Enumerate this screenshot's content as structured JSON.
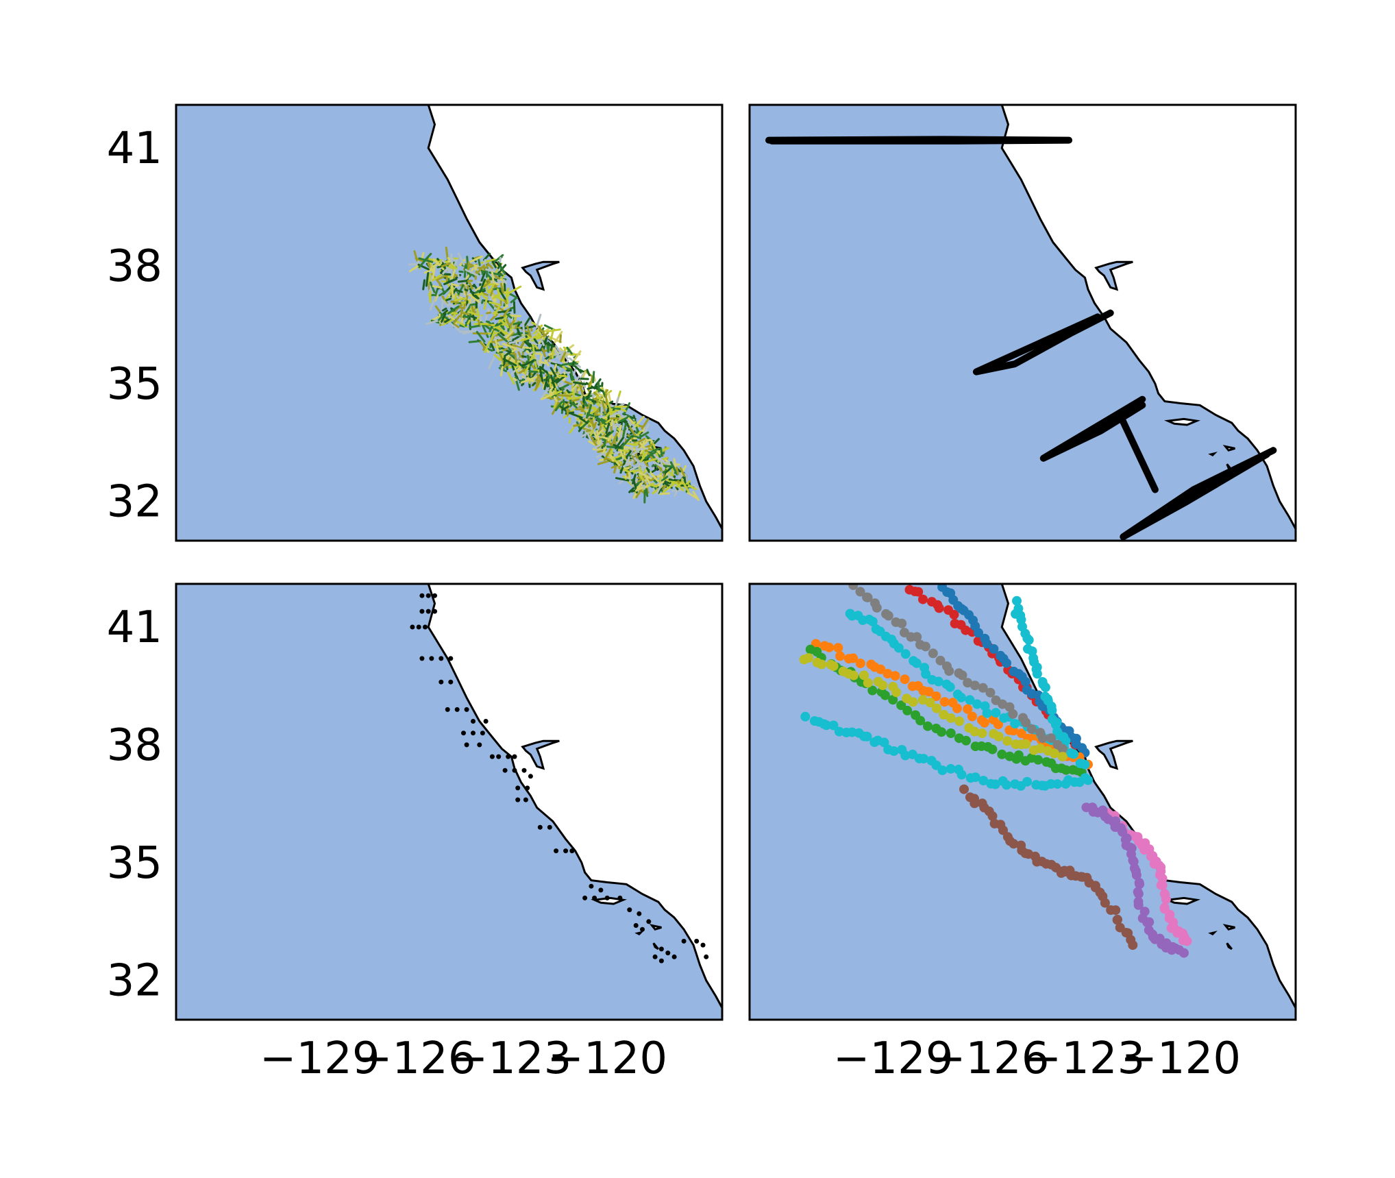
{
  "figure": {
    "background": "#ffffff"
  },
  "map": {
    "extent": {
      "lon": [
        -133.5,
        -116.4
      ],
      "lat": [
        31.0,
        42.1
      ]
    },
    "ocean_color": "#97b6e1",
    "land_color": "#ffffff",
    "coast_color": "#000000",
    "xticks": [
      -129,
      -126,
      -123,
      -120
    ],
    "yticks": [
      41,
      38,
      35,
      32
    ],
    "xtick_labels": [
      "−129",
      "−126",
      "−123",
      "−120"
    ],
    "ytick_labels": [
      "41",
      "38",
      "35",
      "32"
    ]
  },
  "coast": [
    [
      -125.6,
      42.1
    ],
    [
      -125.4,
      41.6
    ],
    [
      -125.6,
      41.0
    ],
    [
      -125.3,
      40.6
    ],
    [
      -125.0,
      40.2
    ],
    [
      -124.7,
      39.7
    ],
    [
      -124.4,
      39.2
    ],
    [
      -124.0,
      38.6
    ],
    [
      -123.6,
      38.2
    ],
    [
      -123.3,
      37.9
    ],
    [
      -123.0,
      37.7
    ],
    [
      -122.9,
      37.4
    ],
    [
      -122.7,
      37.05
    ],
    [
      -122.4,
      36.7
    ],
    [
      -122.2,
      36.4
    ],
    [
      -121.7,
      36.05
    ],
    [
      -121.3,
      35.6
    ],
    [
      -121.0,
      35.3
    ],
    [
      -120.8,
      35.0
    ],
    [
      -120.7,
      34.75
    ],
    [
      -120.5,
      34.55
    ],
    [
      -120.0,
      34.5
    ],
    [
      -119.4,
      34.45
    ],
    [
      -118.9,
      34.2
    ],
    [
      -118.4,
      34.0
    ],
    [
      -118.2,
      33.8
    ],
    [
      -117.9,
      33.6
    ],
    [
      -117.6,
      33.3
    ],
    [
      -117.3,
      32.9
    ],
    [
      -117.1,
      32.4
    ],
    [
      -116.9,
      32.0
    ],
    [
      -116.6,
      31.6
    ],
    [
      -116.4,
      31.3
    ]
  ],
  "bay": [
    [
      -122.65,
      37.95
    ],
    [
      -122.25,
      38.05
    ],
    [
      -122.0,
      38.1
    ],
    [
      -121.5,
      38.1
    ],
    [
      -121.7,
      38.05
    ],
    [
      -122.2,
      37.9
    ],
    [
      -122.1,
      37.7
    ],
    [
      -122.0,
      37.4
    ],
    [
      -122.2,
      37.45
    ],
    [
      -122.4,
      37.75
    ],
    [
      -122.55,
      37.85
    ]
  ],
  "islands": [
    [
      [
        -120.4,
        34.05
      ],
      [
        -119.9,
        34.1
      ],
      [
        -119.5,
        34.05
      ],
      [
        -119.8,
        33.95
      ],
      [
        -120.2,
        33.98
      ]
    ],
    [
      [
        -118.6,
        33.4
      ],
      [
        -118.3,
        33.35
      ],
      [
        -118.5,
        33.3
      ]
    ],
    [
      [
        -119.05,
        33.2
      ],
      [
        -118.95,
        33.22
      ],
      [
        -119.0,
        33.18
      ]
    ],
    [
      [
        -118.55,
        32.95
      ],
      [
        -118.4,
        32.8
      ],
      [
        -118.5,
        32.85
      ]
    ]
  ],
  "panels": [
    {
      "id": "velocity-quiver",
      "quiver_colors": [
        "#1b5e20",
        "#2e7d32",
        "#9e9d24",
        "#c0ca33",
        "#d4d16a",
        "#b0bec5"
      ]
    },
    {
      "id": "glider-tracks",
      "track_color": "#000000",
      "tracks": [
        [
          [
            -132.9,
            41.2
          ],
          [
            -127.5,
            41.22
          ],
          [
            -123.5,
            41.2
          ],
          [
            -127.0,
            41.18
          ],
          [
            -132.8,
            41.18
          ]
        ],
        [
          [
            -122.6,
            36.7
          ],
          [
            -124.5,
            36.0
          ],
          [
            -126.4,
            35.3
          ],
          [
            -125.2,
            35.5
          ],
          [
            -123.4,
            36.3
          ],
          [
            -122.2,
            36.8
          ]
        ],
        [
          [
            -121.2,
            34.6
          ],
          [
            -124.3,
            33.1
          ],
          [
            -122.5,
            33.8
          ],
          [
            -121.2,
            34.45
          ]
        ],
        [
          [
            -121.9,
            34.2
          ],
          [
            -120.8,
            32.3
          ]
        ],
        [
          [
            -117.1,
            33.3
          ],
          [
            -119.6,
            32.3
          ],
          [
            -121.8,
            31.1
          ],
          [
            -119.8,
            32.0
          ],
          [
            -117.3,
            33.2
          ]
        ]
      ]
    },
    {
      "id": "station-grid",
      "point_color": "#000000",
      "stations": [
        [
          -125.8,
          41.8
        ],
        [
          -125.6,
          41.8
        ],
        [
          -125.4,
          41.8
        ],
        [
          -125.8,
          41.4
        ],
        [
          -125.6,
          41.4
        ],
        [
          -125.4,
          41.4
        ],
        [
          -126.1,
          41.0
        ],
        [
          -125.9,
          41.0
        ],
        [
          -125.7,
          41.0
        ],
        [
          -125.8,
          40.2
        ],
        [
          -125.5,
          40.2
        ],
        [
          -125.2,
          40.2
        ],
        [
          -124.9,
          40.2
        ],
        [
          -125.2,
          39.6
        ],
        [
          -124.9,
          39.6
        ],
        [
          -125.0,
          38.9
        ],
        [
          -124.7,
          38.9
        ],
        [
          -124.4,
          38.9
        ],
        [
          -124.2,
          38.6
        ],
        [
          -123.8,
          38.6
        ],
        [
          -124.5,
          38.3
        ],
        [
          -124.2,
          38.3
        ],
        [
          -123.9,
          38.3
        ],
        [
          -124.4,
          38.0
        ],
        [
          -124.0,
          38.0
        ],
        [
          -123.6,
          37.7
        ],
        [
          -123.4,
          37.7
        ],
        [
          -123.1,
          37.7
        ],
        [
          -122.9,
          37.7
        ],
        [
          -123.2,
          37.35
        ],
        [
          -122.9,
          37.35
        ],
        [
          -122.6,
          37.35
        ],
        [
          -122.4,
          37.2
        ],
        [
          -122.5,
          36.9
        ],
        [
          -122.8,
          36.9
        ],
        [
          -122.55,
          36.6
        ],
        [
          -122.8,
          36.6
        ],
        [
          -122.1,
          35.9
        ],
        [
          -121.8,
          35.9
        ],
        [
          -121.6,
          35.3
        ],
        [
          -121.3,
          35.3
        ],
        [
          -121.1,
          35.3
        ],
        [
          -120.5,
          34.4
        ],
        [
          -120.2,
          34.3
        ],
        [
          -120.7,
          34.1
        ],
        [
          -120.4,
          34.1
        ],
        [
          -120.0,
          34.1
        ],
        [
          -119.6,
          34.1
        ],
        [
          -119.3,
          33.8
        ],
        [
          -119.0,
          33.7
        ],
        [
          -118.7,
          33.5
        ],
        [
          -119.1,
          33.4
        ],
        [
          -118.9,
          33.3
        ],
        [
          -118.3,
          32.8
        ],
        [
          -118.1,
          32.7
        ],
        [
          -117.6,
          33.0
        ],
        [
          -117.2,
          33.0
        ],
        [
          -117.0,
          32.9
        ],
        [
          -116.9,
          32.6
        ],
        [
          -117.9,
          32.6
        ],
        [
          -118.3,
          32.5
        ],
        [
          -118.5,
          32.6
        ]
      ]
    },
    {
      "id": "drifter-tracks",
      "drifters": [
        {
          "color": "#d62728",
          "points": [
            [
              -128.5,
              42.0
            ],
            [
              -127.5,
              41.5
            ],
            [
              -126.5,
              40.8
            ],
            [
              -125.6,
              40.1
            ],
            [
              -124.8,
              39.4
            ],
            [
              -124.0,
              38.7
            ],
            [
              -123.3,
              38.0
            ]
          ]
        },
        {
          "color": "#1f77b4",
          "points": [
            [
              -127.4,
              42.0
            ],
            [
              -126.8,
              41.4
            ],
            [
              -126.0,
              40.6
            ],
            [
              -125.1,
              39.8
            ],
            [
              -124.4,
              39.1
            ],
            [
              -123.6,
              38.4
            ],
            [
              -123.0,
              37.8
            ]
          ]
        },
        {
          "color": "#ff7f0e",
          "points": [
            [
              -131.4,
              40.6
            ],
            [
              -130.2,
              40.2
            ],
            [
              -128.9,
              39.7
            ],
            [
              -127.6,
              39.2
            ],
            [
              -126.3,
              38.7
            ],
            [
              -125.0,
              38.3
            ],
            [
              -123.8,
              37.9
            ],
            [
              -122.9,
              37.5
            ]
          ]
        },
        {
          "color": "#2ca02c",
          "points": [
            [
              -131.6,
              40.4
            ],
            [
              -130.4,
              39.8
            ],
            [
              -129.2,
              39.2
            ],
            [
              -127.9,
              38.5
            ],
            [
              -126.5,
              38.0
            ],
            [
              -125.2,
              37.7
            ],
            [
              -124.0,
              37.5
            ],
            [
              -123.1,
              37.3
            ]
          ]
        },
        {
          "color": "#17becf",
          "points": [
            [
              -131.7,
              38.7
            ],
            [
              -130.7,
              38.4
            ],
            [
              -129.6,
              38.1
            ],
            [
              -128.6,
              37.8
            ],
            [
              -127.4,
              37.4
            ],
            [
              -126.2,
              37.1
            ],
            [
              -125.0,
              37.0
            ],
            [
              -123.8,
              37.0
            ],
            [
              -122.9,
              37.1
            ]
          ]
        },
        {
          "color": "#17becf",
          "points": [
            [
              -130.4,
              41.4
            ],
            [
              -129.5,
              41.0
            ],
            [
              -128.6,
              40.3
            ],
            [
              -127.6,
              39.6
            ],
            [
              -126.4,
              39.0
            ],
            [
              -125.2,
              38.6
            ],
            [
              -124.0,
              38.1
            ],
            [
              -123.0,
              37.5
            ]
          ]
        },
        {
          "color": "#17becf",
          "points": [
            [
              -125.2,
              41.6
            ],
            [
              -124.9,
              40.9
            ],
            [
              -124.6,
              40.1
            ],
            [
              -124.3,
              39.4
            ],
            [
              -124.0,
              38.7
            ],
            [
              -123.6,
              38.1
            ]
          ]
        },
        {
          "color": "#7f7f7f",
          "points": [
            [
              -130.2,
              42.0
            ],
            [
              -129.3,
              41.4
            ],
            [
              -128.3,
              40.7
            ],
            [
              -127.2,
              39.9
            ],
            [
              -126.0,
              39.3
            ],
            [
              -124.8,
              38.5
            ],
            [
              -123.7,
              37.9
            ]
          ]
        },
        {
          "color": "#bcbd22",
          "points": [
            [
              -131.8,
              40.2
            ],
            [
              -130.6,
              39.9
            ],
            [
              -129.3,
              39.5
            ],
            [
              -127.9,
              39.0
            ],
            [
              -126.4,
              38.4
            ],
            [
              -125.0,
              38.0
            ],
            [
              -123.7,
              37.7
            ]
          ]
        },
        {
          "color": "#8c564b",
          "points": [
            [
              -126.8,
              36.8
            ],
            [
              -126.0,
              36.3
            ],
            [
              -125.3,
              35.6
            ],
            [
              -124.6,
              35.1
            ],
            [
              -123.8,
              34.8
            ],
            [
              -123.3,
              34.7
            ],
            [
              -122.6,
              34.4
            ],
            [
              -122.0,
              33.6
            ],
            [
              -121.5,
              32.9
            ]
          ]
        },
        {
          "color": "#e377c2",
          "points": [
            [
              -122.3,
              36.3
            ],
            [
              -121.8,
              35.8
            ],
            [
              -121.2,
              35.5
            ],
            [
              -120.8,
              35.1
            ],
            [
              -120.6,
              34.6
            ],
            [
              -120.5,
              33.9
            ],
            [
              -120.2,
              33.3
            ],
            [
              -119.8,
              33.0
            ]
          ]
        },
        {
          "color": "#9467bd",
          "points": [
            [
              -122.9,
              36.4
            ],
            [
              -122.4,
              36.3
            ],
            [
              -121.9,
              35.9
            ],
            [
              -121.6,
              35.4
            ],
            [
              -121.4,
              34.8
            ],
            [
              -121.3,
              34.0
            ],
            [
              -121.0,
              33.3
            ],
            [
              -120.5,
              32.9
            ],
            [
              -119.9,
              32.7
            ]
          ]
        }
      ]
    }
  ]
}
